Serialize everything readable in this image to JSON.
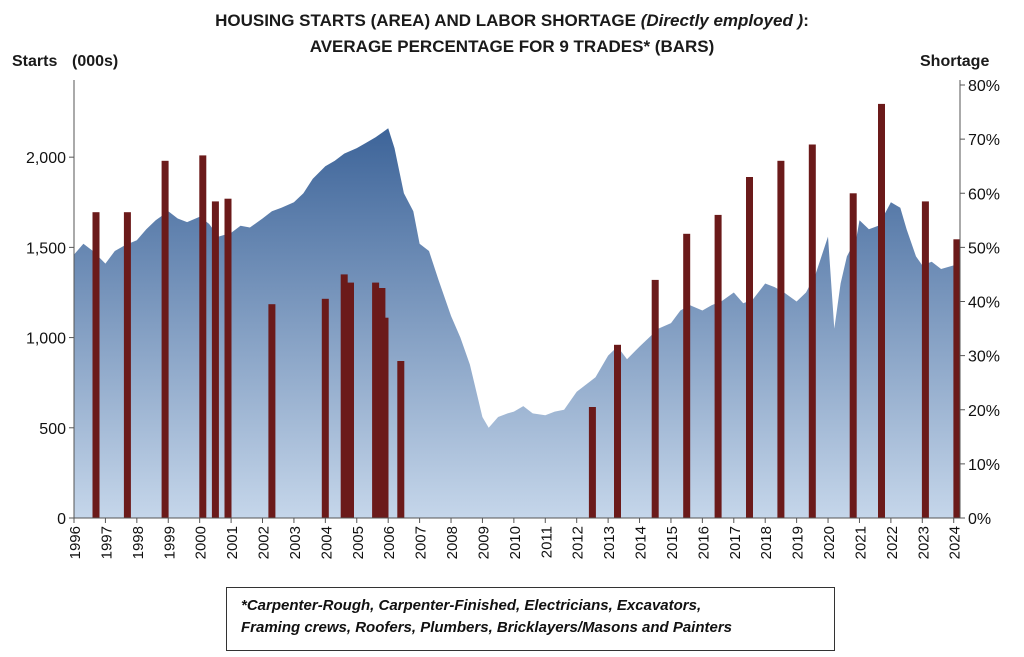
{
  "chart_data": {
    "type": "area+bar",
    "title_parts": {
      "line1_prefix": "HOUSING STARTS (AREA) AND  LABOR SHORTAGE ",
      "line1_italic": "(Directly employed )",
      "line1_suffix": ":",
      "line2": "AVERAGE PERCENTAGE FOR 9 TRADES* (BARS)"
    },
    "y_left_label": "Starts",
    "y_left_unit": "(000s)",
    "y_right_label": "Shortage",
    "y_left_range": [
      0,
      2400
    ],
    "y_right_range": [
      0,
      80
    ],
    "x_range": [
      1996,
      2024.2
    ],
    "y_left_ticks": [
      {
        "v": 0,
        "label": "0"
      },
      {
        "v": 500,
        "label": "500"
      },
      {
        "v": 1000,
        "label": "1,000"
      },
      {
        "v": 1500,
        "label": "1,500"
      },
      {
        "v": 2000,
        "label": "2,000"
      }
    ],
    "y_right_ticks": [
      {
        "v": 0,
        "label": "0%"
      },
      {
        "v": 10,
        "label": "10%"
      },
      {
        "v": 20,
        "label": "20%"
      },
      {
        "v": 30,
        "label": "30%"
      },
      {
        "v": 40,
        "label": "40%"
      },
      {
        "v": 50,
        "label": "50%"
      },
      {
        "v": 60,
        "label": "60%"
      },
      {
        "v": 70,
        "label": "70%"
      },
      {
        "v": 80,
        "label": "80%"
      }
    ],
    "x_ticks": [
      "1996",
      "1997",
      "1998",
      "1999",
      "2000",
      "2001",
      "2002",
      "2003",
      "2004",
      "2005",
      "2006",
      "2007",
      "2008",
      "2009",
      "2010",
      "2011",
      "2012",
      "2013",
      "2014",
      "2015",
      "2016",
      "2017",
      "2018",
      "2019",
      "2020",
      "2021",
      "2022",
      "2023",
      "2024"
    ],
    "area_series": {
      "name": "Housing starts",
      "points": [
        [
          1996.0,
          1460
        ],
        [
          1996.3,
          1520
        ],
        [
          1996.6,
          1480
        ],
        [
          1997.0,
          1410
        ],
        [
          1997.3,
          1480
        ],
        [
          1997.6,
          1510
        ],
        [
          1998.0,
          1540
        ],
        [
          1998.3,
          1600
        ],
        [
          1998.6,
          1650
        ],
        [
          1999.0,
          1700
        ],
        [
          1999.3,
          1660
        ],
        [
          1999.6,
          1640
        ],
        [
          2000.0,
          1670
        ],
        [
          2000.3,
          1630
        ],
        [
          2000.6,
          1560
        ],
        [
          2001.0,
          1580
        ],
        [
          2001.3,
          1620
        ],
        [
          2001.6,
          1610
        ],
        [
          2002.0,
          1660
        ],
        [
          2002.3,
          1700
        ],
        [
          2002.6,
          1720
        ],
        [
          2003.0,
          1750
        ],
        [
          2003.3,
          1800
        ],
        [
          2003.6,
          1880
        ],
        [
          2004.0,
          1950
        ],
        [
          2004.3,
          1980
        ],
        [
          2004.6,
          2020
        ],
        [
          2005.0,
          2050
        ],
        [
          2005.3,
          2080
        ],
        [
          2005.6,
          2110
        ],
        [
          2006.0,
          2160
        ],
        [
          2006.2,
          2050
        ],
        [
          2006.5,
          1800
        ],
        [
          2006.8,
          1700
        ],
        [
          2007.0,
          1520
        ],
        [
          2007.3,
          1480
        ],
        [
          2007.6,
          1320
        ],
        [
          2008.0,
          1120
        ],
        [
          2008.3,
          1000
        ],
        [
          2008.6,
          850
        ],
        [
          2009.0,
          560
        ],
        [
          2009.2,
          500
        ],
        [
          2009.5,
          560
        ],
        [
          2009.8,
          580
        ],
        [
          2010.0,
          590
        ],
        [
          2010.3,
          620
        ],
        [
          2010.6,
          580
        ],
        [
          2011.0,
          570
        ],
        [
          2011.3,
          590
        ],
        [
          2011.6,
          600
        ],
        [
          2012.0,
          700
        ],
        [
          2012.3,
          740
        ],
        [
          2012.6,
          780
        ],
        [
          2013.0,
          900
        ],
        [
          2013.3,
          950
        ],
        [
          2013.6,
          880
        ],
        [
          2014.0,
          950
        ],
        [
          2014.3,
          1000
        ],
        [
          2014.6,
          1050
        ],
        [
          2015.0,
          1080
        ],
        [
          2015.3,
          1150
        ],
        [
          2015.6,
          1180
        ],
        [
          2016.0,
          1150
        ],
        [
          2016.3,
          1180
        ],
        [
          2016.6,
          1200
        ],
        [
          2017.0,
          1250
        ],
        [
          2017.3,
          1190
        ],
        [
          2017.6,
          1210
        ],
        [
          2018.0,
          1300
        ],
        [
          2018.3,
          1280
        ],
        [
          2018.6,
          1250
        ],
        [
          2019.0,
          1200
        ],
        [
          2019.3,
          1250
        ],
        [
          2019.6,
          1350
        ],
        [
          2020.0,
          1560
        ],
        [
          2020.2,
          1050
        ],
        [
          2020.4,
          1300
        ],
        [
          2020.6,
          1450
        ],
        [
          2020.9,
          1550
        ],
        [
          2021.0,
          1650
        ],
        [
          2021.3,
          1600
        ],
        [
          2021.6,
          1620
        ],
        [
          2022.0,
          1750
        ],
        [
          2022.3,
          1720
        ],
        [
          2022.5,
          1600
        ],
        [
          2022.8,
          1450
        ],
        [
          2023.0,
          1400
        ],
        [
          2023.3,
          1420
        ],
        [
          2023.6,
          1380
        ],
        [
          2024.0,
          1400
        ],
        [
          2024.2,
          1420
        ]
      ]
    },
    "bar_series": {
      "name": "Labor shortage",
      "points": [
        [
          1996.7,
          56.5
        ],
        [
          1997.7,
          56.5
        ],
        [
          1998.9,
          66
        ],
        [
          2000.1,
          67
        ],
        [
          2000.5,
          58.5
        ],
        [
          2000.9,
          59
        ],
        [
          2002.3,
          39.5
        ],
        [
          2004.0,
          40.5
        ],
        [
          2004.6,
          45
        ],
        [
          2004.8,
          43.5
        ],
        [
          2005.6,
          43.5
        ],
        [
          2005.8,
          42.5
        ],
        [
          2005.9,
          37
        ],
        [
          2006.4,
          29
        ],
        [
          2012.5,
          20.5
        ],
        [
          2013.3,
          32
        ],
        [
          2014.5,
          44
        ],
        [
          2015.5,
          52.5
        ],
        [
          2016.5,
          56
        ],
        [
          2017.5,
          63
        ],
        [
          2018.5,
          66
        ],
        [
          2019.5,
          69
        ],
        [
          2020.8,
          60
        ],
        [
          2021.7,
          76.5
        ],
        [
          2023.1,
          58.5
        ],
        [
          2024.1,
          51.5
        ]
      ]
    }
  },
  "footnote": {
    "line1": "*Carpenter-Rough, Carpenter-Finished, Electricians, Excavators,",
    "line2": "Framing crews, Roofers, Plumbers, Bricklayers/Masons and Painters"
  },
  "colors": {
    "area_top": "#3d6499",
    "area_bottom": "#c5d6ea",
    "bar": "#6b1a1a",
    "axis": "#555555"
  }
}
